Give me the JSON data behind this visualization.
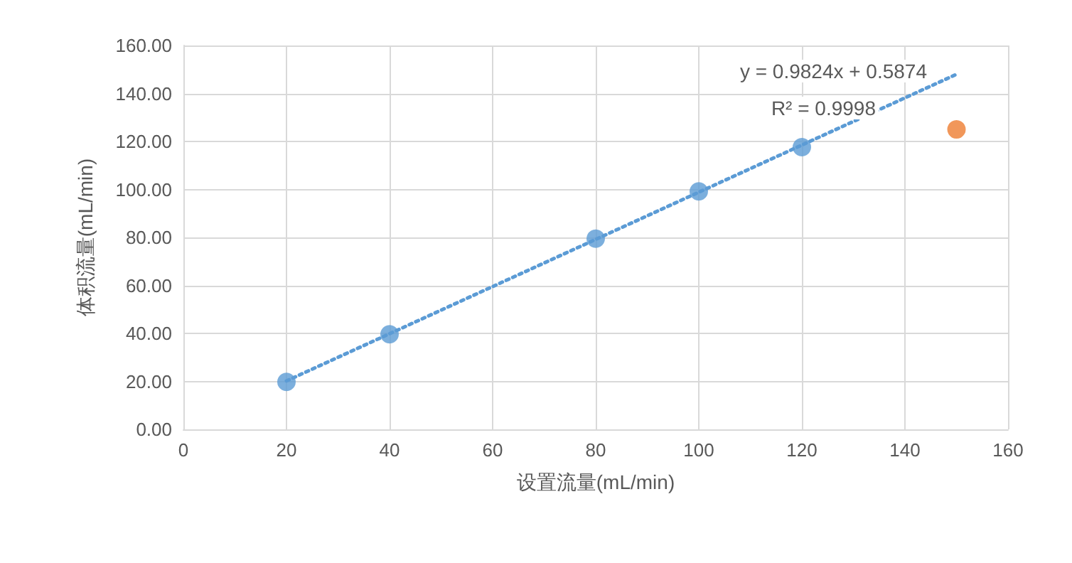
{
  "chart_data": {
    "type": "scatter",
    "xlabel": "设置流量(mL/min)",
    "ylabel": "体积流量(mL/min)",
    "xlim": [
      0,
      160
    ],
    "xticks": [
      0,
      20,
      40,
      60,
      80,
      100,
      120,
      140,
      160
    ],
    "ylim": [
      0,
      160
    ],
    "yticks": [
      {
        "value": 0,
        "label": "0.00"
      },
      {
        "value": 20,
        "label": "20.00"
      },
      {
        "value": 40,
        "label": "40.00"
      },
      {
        "value": 60,
        "label": "60.00"
      },
      {
        "value": 80,
        "label": "80.00"
      },
      {
        "value": 100,
        "label": "100.00"
      },
      {
        "value": 120,
        "label": "120.00"
      },
      {
        "value": 140,
        "label": "140.00"
      },
      {
        "value": 160,
        "label": "160.00"
      }
    ],
    "grid": true,
    "marker": "circle",
    "series": [
      {
        "color": "#5b9bd5",
        "x": [
          20,
          40,
          80,
          100,
          120
        ],
        "values": [
          19.8,
          39.6,
          79.5,
          99.2,
          117.6
        ]
      },
      {
        "color": "#ed7d31",
        "x": [
          150
        ],
        "values": [
          125
        ]
      },
      {
        "type": "line",
        "color": "#5b9bd5",
        "line_style": "dotted",
        "marker": "none",
        "x": [
          20,
          150
        ],
        "values": [
          20.2,
          148.0
        ]
      }
    ],
    "annotations": [
      "y = 0.9824x + 0.5874",
      "R² = 0.9998"
    ]
  }
}
